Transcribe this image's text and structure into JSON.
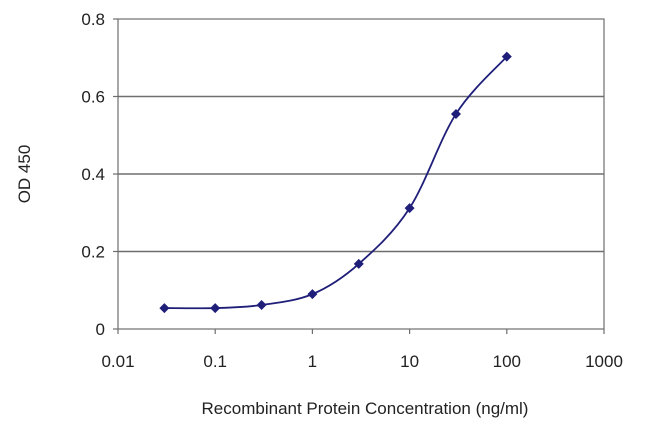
{
  "chart_data": {
    "type": "line",
    "title": "",
    "xlabel": "Recombinant Protein Concentration (ng/ml)",
    "ylabel": "OD 450",
    "x_scale": "log",
    "xlim": [
      0.01,
      1000
    ],
    "ylim": [
      0,
      0.8
    ],
    "x_ticks": [
      "0.01",
      "0.1",
      "1",
      "10",
      "100",
      "1000"
    ],
    "x_tick_values": [
      0.01,
      0.1,
      1,
      10,
      100,
      1000
    ],
    "y_ticks": [
      "0",
      "0.2",
      "0.4",
      "0.6",
      "0.8"
    ],
    "y_tick_values": [
      0,
      0.2,
      0.4,
      0.6,
      0.8
    ],
    "grid": "horizontal",
    "legend": "none",
    "series": [
      {
        "x": [
          0.03,
          0.1,
          0.3,
          1,
          3,
          10,
          30,
          100
        ],
        "y": [
          0.054,
          0.054,
          0.062,
          0.09,
          0.168,
          0.312,
          0.555,
          0.703
        ]
      }
    ],
    "colors": {
      "series": "#1f1f7a",
      "grid": "#6e6e6e",
      "axis": "#6e6e6e"
    }
  }
}
